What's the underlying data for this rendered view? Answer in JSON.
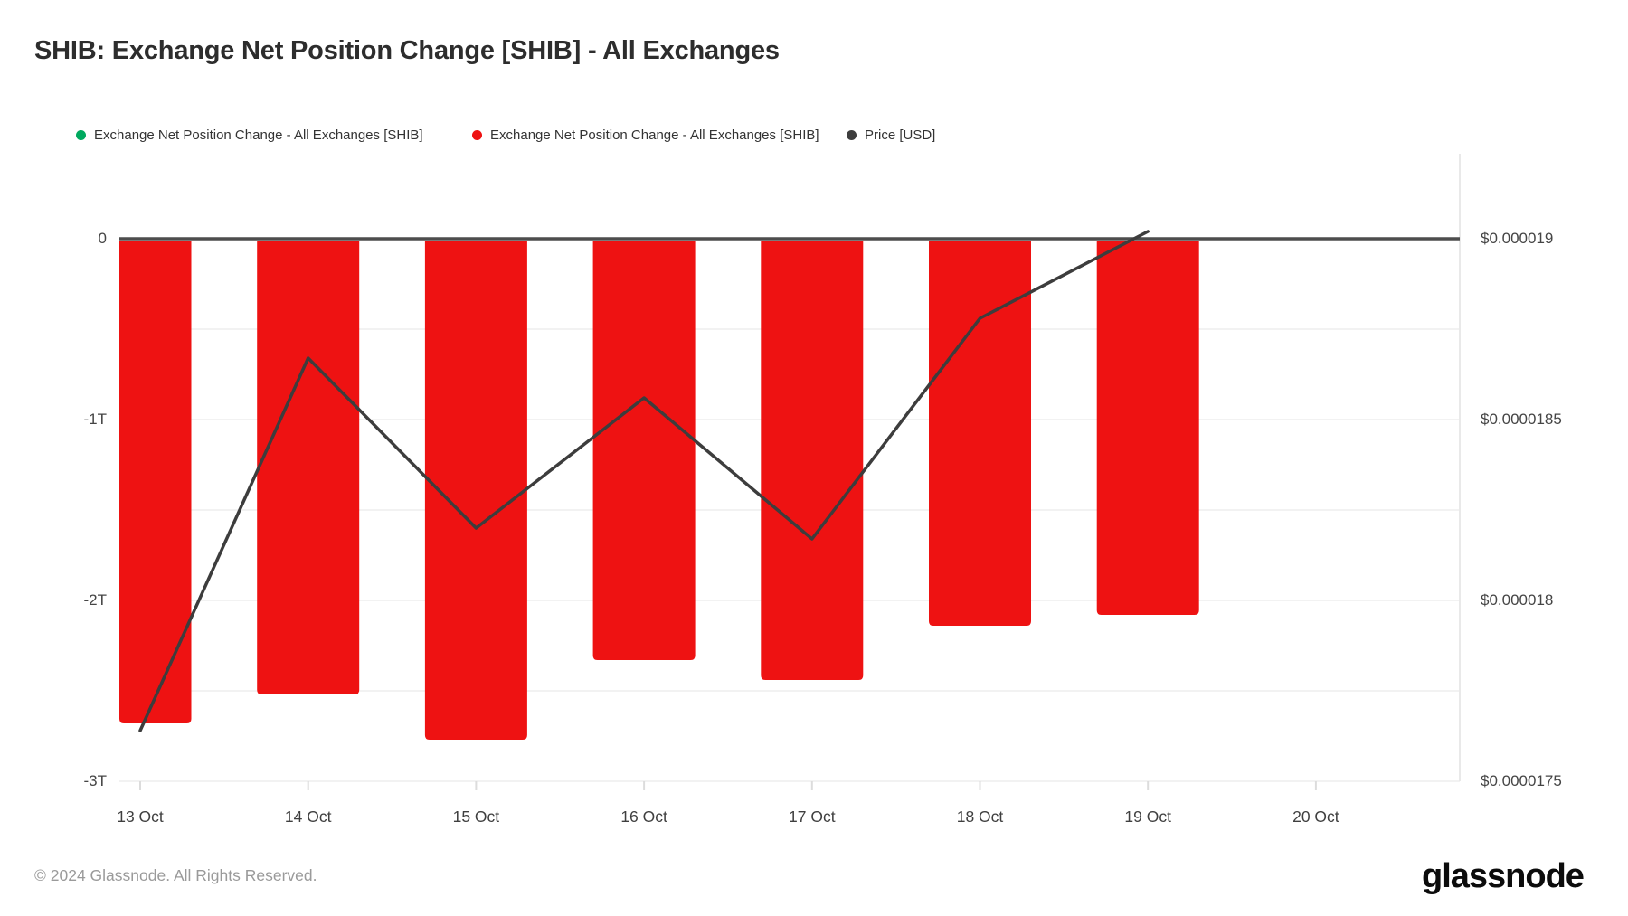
{
  "title": "SHIB: Exchange Net Position Change [SHIB] - All Exchanges",
  "legend": [
    {
      "label": "Exchange Net Position Change - All Exchanges [SHIB]",
      "color": "#00a95f"
    },
    {
      "label": "Exchange Net Position Change - All Exchanges [SHIB]",
      "color": "#ee1212"
    },
    {
      "label": "Price [USD]",
      "color": "#3d3d3d"
    }
  ],
  "footer": {
    "copyright": "© 2024 Glassnode. All Rights Reserved.",
    "brand": "glassnode"
  },
  "colors": {
    "bar_negative": "#ee1212",
    "price_line": "#3d3d3d",
    "zero_line": "#4d4d4d",
    "gridline": "#ededed",
    "axis_edge": "#e9e9e9",
    "tick": "#dcdcdc"
  },
  "chart_data": {
    "type": "bar",
    "subtype": "bar+line dual-axis, negative bars, daily",
    "categories": [
      "13 Oct",
      "14 Oct",
      "15 Oct",
      "16 Oct",
      "17 Oct",
      "18 Oct",
      "19 Oct",
      "20 Oct"
    ],
    "series": [
      {
        "name": "Exchange Net Position Change - All Exchanges [SHIB]",
        "type": "bar",
        "axis": "left",
        "unit": "SHIB, trillions",
        "color": "#ee1212",
        "values": [
          -2.68,
          -2.52,
          -2.77,
          -2.33,
          -2.44,
          -2.14,
          -2.08,
          null
        ]
      },
      {
        "name": "Price [USD]",
        "type": "line",
        "axis": "right",
        "unit": "USD",
        "color": "#3d3d3d",
        "values": [
          1.764e-05,
          1.867e-05,
          1.82e-05,
          1.856e-05,
          1.817e-05,
          1.878e-05,
          1.902e-05,
          null
        ]
      }
    ],
    "left_axis": {
      "tick_labels": [
        "0",
        "-1T",
        "-2T",
        "-3T"
      ],
      "tick_values": [
        0,
        -1,
        -2,
        -3
      ],
      "ylim": [
        -3.0,
        0.5
      ],
      "minor_step": 0.5
    },
    "right_axis": {
      "tick_labels": [
        "$0.000019",
        "$0.0000185",
        "$0.000018",
        "$0.0000175"
      ],
      "tick_values": [
        1.9e-05,
        1.85e-05,
        1.8e-05,
        1.75e-05
      ],
      "ylim": [
        1.75e-05,
        1.9e-05
      ]
    },
    "grid": true,
    "legend_position": "top"
  }
}
